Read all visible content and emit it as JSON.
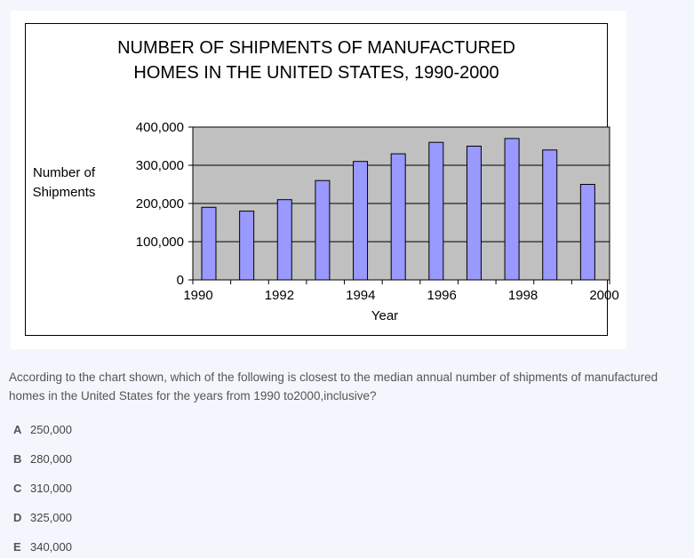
{
  "chart_data": {
    "type": "bar",
    "title_lines": [
      "NUMBER OF SHIPMENTS OF MANUFACTURED",
      "HOMES IN THE UNITED STATES, 1990-2000"
    ],
    "ylabel_lines": [
      "Number of",
      "Shipments"
    ],
    "xlabel": "Year",
    "categories": [
      "1990",
      "1991",
      "1992",
      "1993",
      "1994",
      "1995",
      "1996",
      "1997",
      "1998",
      "1999",
      "2000"
    ],
    "values": [
      190000,
      180000,
      210000,
      260000,
      310000,
      330000,
      360000,
      350000,
      370000,
      340000,
      250000
    ],
    "ylim": [
      0,
      400000
    ],
    "y_ticks": [
      0,
      100000,
      200000,
      300000,
      400000
    ],
    "y_tick_labels": [
      "0",
      "100,000",
      "200,000",
      "300,000",
      "400,000"
    ],
    "x_tick_labels": [
      "1990",
      "1992",
      "1994",
      "1996",
      "1998",
      "2000"
    ],
    "grid": true,
    "colors": {
      "bar": "#9999ff",
      "plot_bg": "#c0c0c0"
    }
  },
  "question": "According to the chart shown, which of the following is closest to the median annual number of shipments of manufactured homes in the United States for the years from 1990 to2000,inclusive?",
  "options": [
    {
      "letter": "A",
      "text": "250,000"
    },
    {
      "letter": "B",
      "text": "280,000"
    },
    {
      "letter": "C",
      "text": "310,000"
    },
    {
      "letter": "D",
      "text": "325,000"
    },
    {
      "letter": "E",
      "text": "340,000"
    }
  ]
}
